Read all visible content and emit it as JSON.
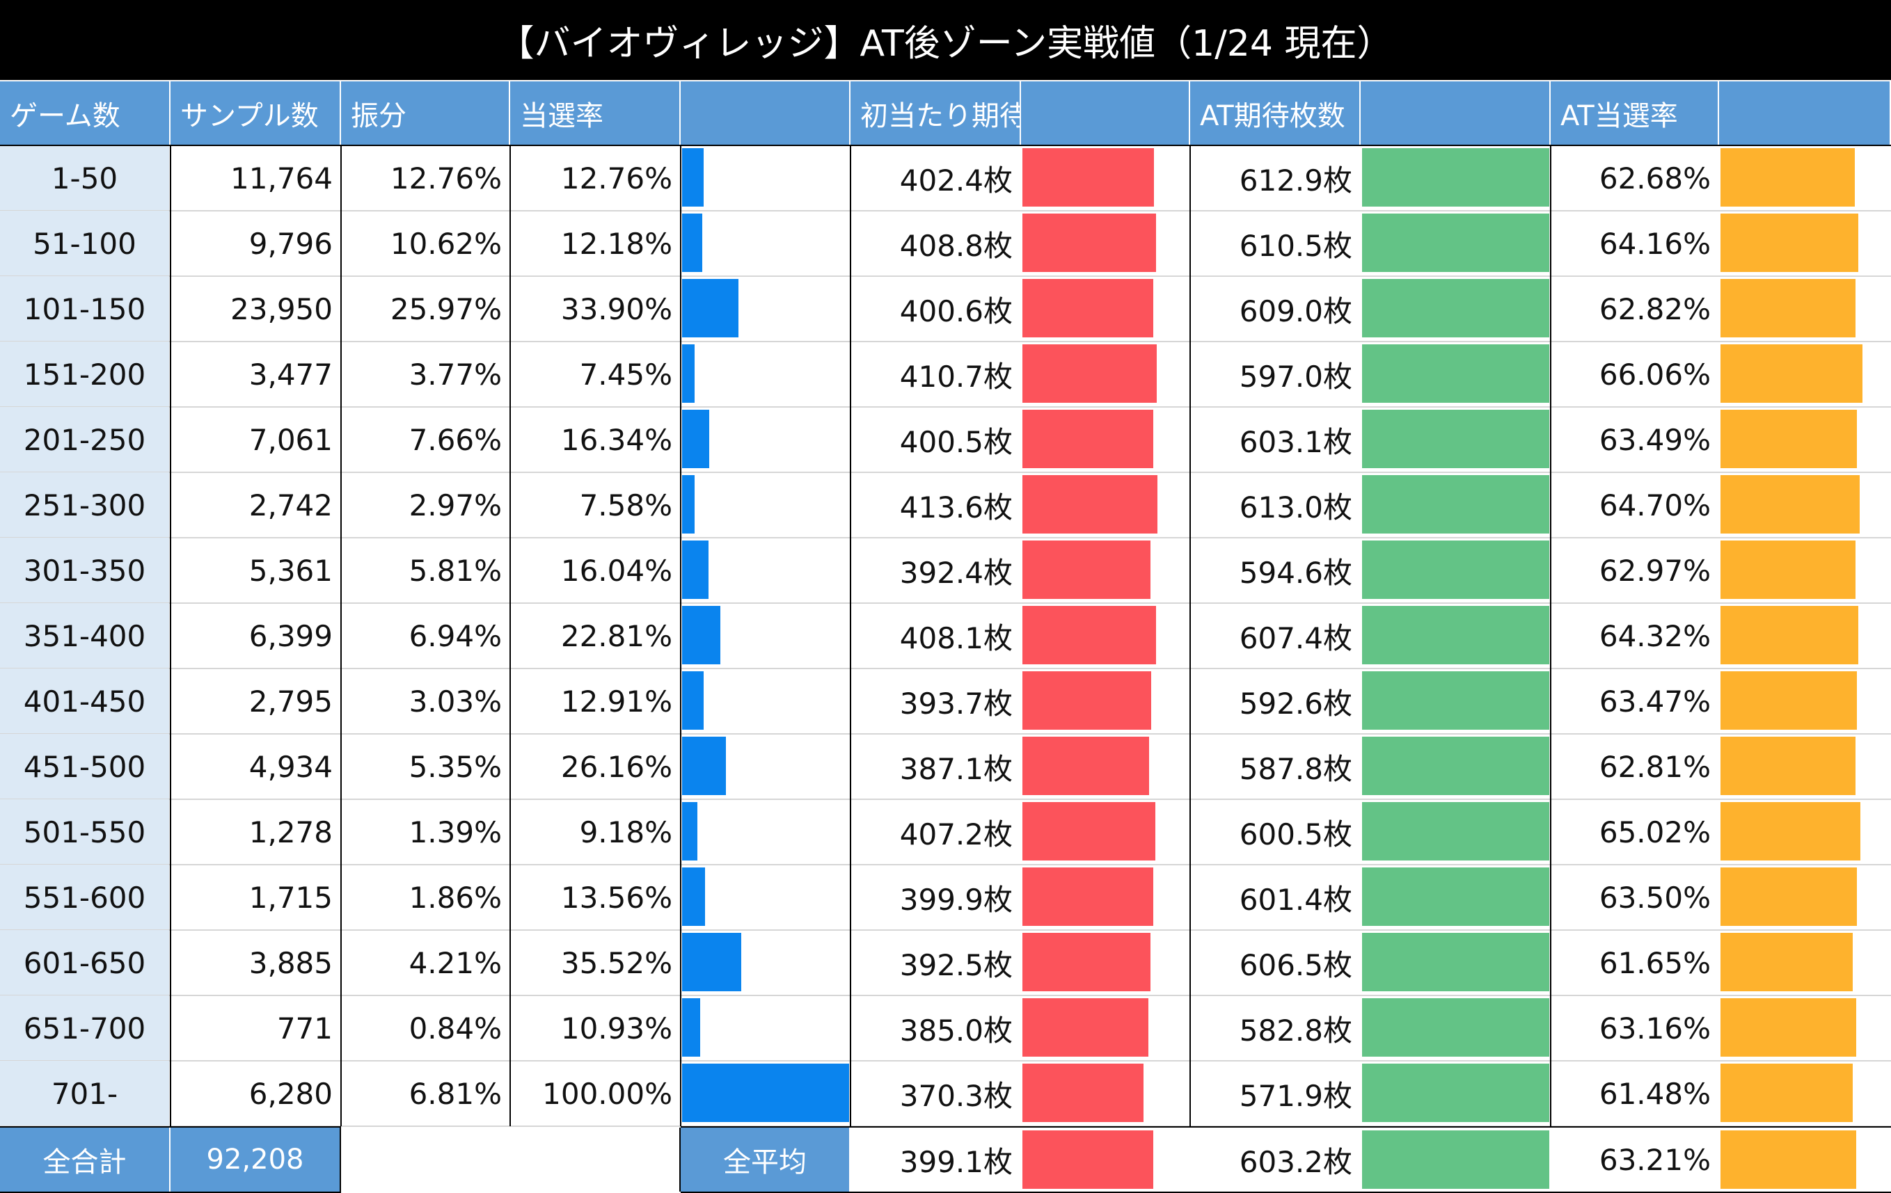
{
  "title": "【バイオヴィレッジ】AT後ゾーン実戦値（1/24 現在）",
  "colors": {
    "header_bg": "#5a9ad6",
    "game_col_bg": "#dce9f5",
    "blue_bar": "#0a84ee",
    "red_bar": "#fc535b",
    "green_bar": "#63c386",
    "orange_bar": "#feb22d"
  },
  "chart_data": {
    "type": "table",
    "headers": [
      "ゲーム数",
      "サンプル数",
      "振分",
      "当選率",
      "",
      "初当たり期待枚数",
      "",
      "AT期待枚数",
      "",
      "AT当選率",
      ""
    ],
    "rows": [
      {
        "game": "1-50",
        "samples": "11,764",
        "share": "12.76%",
        "rate": "12.76%",
        "rate_value": 12.76,
        "first": "402.4枚",
        "first_value": 402.4,
        "at": "612.9枚",
        "at_value": 612.9,
        "at_rate": "62.68%",
        "at_rate_value": 62.68
      },
      {
        "game": "51-100",
        "samples": "9,796",
        "share": "10.62%",
        "rate": "12.18%",
        "rate_value": 12.18,
        "first": "408.8枚",
        "first_value": 408.8,
        "at": "610.5枚",
        "at_value": 610.5,
        "at_rate": "64.16%",
        "at_rate_value": 64.16
      },
      {
        "game": "101-150",
        "samples": "23,950",
        "share": "25.97%",
        "rate": "33.90%",
        "rate_value": 33.9,
        "first": "400.6枚",
        "first_value": 400.6,
        "at": "609.0枚",
        "at_value": 609.0,
        "at_rate": "62.82%",
        "at_rate_value": 62.82
      },
      {
        "game": "151-200",
        "samples": "3,477",
        "share": "3.77%",
        "rate": "7.45%",
        "rate_value": 7.45,
        "first": "410.7枚",
        "first_value": 410.7,
        "at": "597.0枚",
        "at_value": 597.0,
        "at_rate": "66.06%",
        "at_rate_value": 66.06
      },
      {
        "game": "201-250",
        "samples": "7,061",
        "share": "7.66%",
        "rate": "16.34%",
        "rate_value": 16.34,
        "first": "400.5枚",
        "first_value": 400.5,
        "at": "603.1枚",
        "at_value": 603.1,
        "at_rate": "63.49%",
        "at_rate_value": 63.49
      },
      {
        "game": "251-300",
        "samples": "2,742",
        "share": "2.97%",
        "rate": "7.58%",
        "rate_value": 7.58,
        "first": "413.6枚",
        "first_value": 413.6,
        "at": "613.0枚",
        "at_value": 613.0,
        "at_rate": "64.70%",
        "at_rate_value": 64.7
      },
      {
        "game": "301-350",
        "samples": "5,361",
        "share": "5.81%",
        "rate": "16.04%",
        "rate_value": 16.04,
        "first": "392.4枚",
        "first_value": 392.4,
        "at": "594.6枚",
        "at_value": 594.6,
        "at_rate": "62.97%",
        "at_rate_value": 62.97
      },
      {
        "game": "351-400",
        "samples": "6,399",
        "share": "6.94%",
        "rate": "22.81%",
        "rate_value": 22.81,
        "first": "408.1枚",
        "first_value": 408.1,
        "at": "607.4枚",
        "at_value": 607.4,
        "at_rate": "64.32%",
        "at_rate_value": 64.32
      },
      {
        "game": "401-450",
        "samples": "2,795",
        "share": "3.03%",
        "rate": "12.91%",
        "rate_value": 12.91,
        "first": "393.7枚",
        "first_value": 393.7,
        "at": "592.6枚",
        "at_value": 592.6,
        "at_rate": "63.47%",
        "at_rate_value": 63.47
      },
      {
        "game": "451-500",
        "samples": "4,934",
        "share": "5.35%",
        "rate": "26.16%",
        "rate_value": 26.16,
        "first": "387.1枚",
        "first_value": 387.1,
        "at": "587.8枚",
        "at_value": 587.8,
        "at_rate": "62.81%",
        "at_rate_value": 62.81
      },
      {
        "game": "501-550",
        "samples": "1,278",
        "share": "1.39%",
        "rate": "9.18%",
        "rate_value": 9.18,
        "first": "407.2枚",
        "first_value": 407.2,
        "at": "600.5枚",
        "at_value": 600.5,
        "at_rate": "65.02%",
        "at_rate_value": 65.02
      },
      {
        "game": "551-600",
        "samples": "1,715",
        "share": "1.86%",
        "rate": "13.56%",
        "rate_value": 13.56,
        "first": "399.9枚",
        "first_value": 399.9,
        "at": "601.4枚",
        "at_value": 601.4,
        "at_rate": "63.50%",
        "at_rate_value": 63.5
      },
      {
        "game": "601-650",
        "samples": "3,885",
        "share": "4.21%",
        "rate": "35.52%",
        "rate_value": 35.52,
        "first": "392.5枚",
        "first_value": 392.5,
        "at": "606.5枚",
        "at_value": 606.5,
        "at_rate": "61.65%",
        "at_rate_value": 61.65
      },
      {
        "game": "651-700",
        "samples": "771",
        "share": "0.84%",
        "rate": "10.93%",
        "rate_value": 10.93,
        "first": "385.0枚",
        "first_value": 385.0,
        "at": "582.8枚",
        "at_value": 582.8,
        "at_rate": "63.16%",
        "at_rate_value": 63.16
      },
      {
        "game": "701-",
        "samples": "6,280",
        "share": "6.81%",
        "rate": "100.00%",
        "rate_value": 100.0,
        "first": "370.3枚",
        "first_value": 370.3,
        "at": "571.9枚",
        "at_value": 571.9,
        "at_rate": "61.48%",
        "at_rate_value": 61.48
      }
    ],
    "footer": {
      "total_label": "全合計",
      "total_samples": "92,208",
      "avg_label": "全平均",
      "first": "399.1枚",
      "first_value": 399.1,
      "at": "603.2枚",
      "at_value": 603.2,
      "at_rate": "63.21%",
      "at_rate_value": 63.21
    },
    "bar_scales": {
      "rate_max": 100,
      "first_max": 413.6,
      "at_max": 613.0,
      "at_rate_max": 66.06
    }
  }
}
